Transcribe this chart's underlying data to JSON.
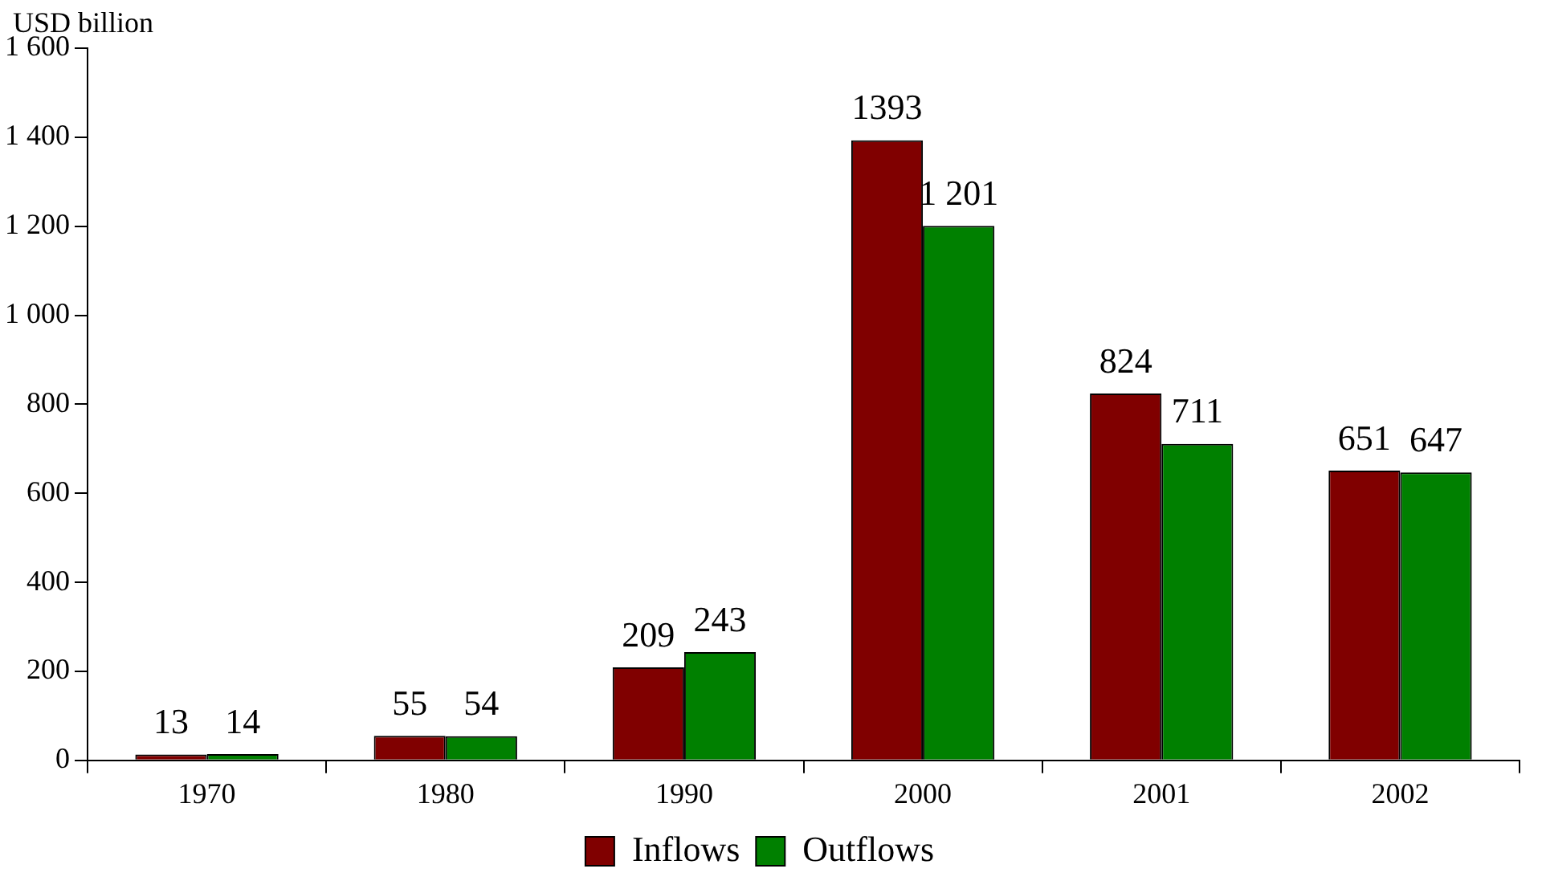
{
  "chart_data": {
    "type": "bar",
    "ylabel": "USD billion",
    "categories": [
      "1970",
      "1980",
      "1990",
      "2000",
      "2001",
      "2002"
    ],
    "series": [
      {
        "name": "Inflows",
        "color": "#800000",
        "values": [
          13,
          55,
          209,
          1393,
          824,
          651
        ],
        "value_labels": [
          "13",
          "55",
          "209",
          "1393",
          "824",
          "651"
        ]
      },
      {
        "name": "Outflows",
        "color": "#008000",
        "values": [
          14,
          54,
          243,
          1201,
          711,
          647
        ],
        "value_labels": [
          "14",
          "54",
          "243",
          "1 201",
          "711",
          "647"
        ]
      }
    ],
    "ylim": [
      0,
      1600
    ],
    "yticks": [
      0,
      200,
      400,
      600,
      800,
      {
        "value": 1000,
        "label": "1 000"
      },
      {
        "value": 1200,
        "label": "1 200"
      },
      {
        "value": 1400,
        "label": "1 400"
      },
      {
        "value": 1600,
        "label": "1 600"
      }
    ],
    "grid": false,
    "legend": "bottom"
  }
}
